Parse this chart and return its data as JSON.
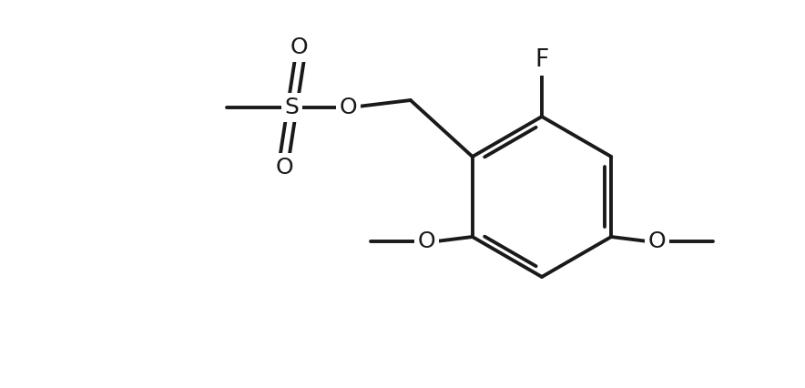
{
  "background_color": "#ffffff",
  "line_color": "#1a1a1a",
  "line_width": 2.8,
  "font_size": 18,
  "font_family": "DejaVu Sans",
  "labels": {
    "F": "F",
    "O_ch2": "O",
    "S": "S",
    "O_top": "O",
    "O_bot": "O",
    "O_right_ome": "O",
    "O_left_ome": "O"
  },
  "figsize": [
    8.84,
    4.26
  ],
  "dpi": 100,
  "xlim": [
    0,
    884
  ],
  "ylim": [
    0,
    426
  ]
}
